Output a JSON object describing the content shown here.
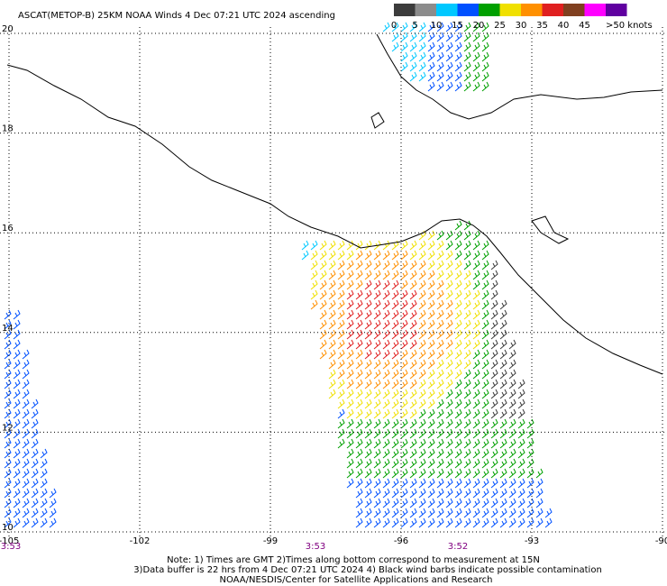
{
  "header": {
    "title": "ASCAT(METOP-B) 25KM NOAA Winds 4 Dec 07:21 UTC 2024 ascending"
  },
  "legend": {
    "items": [
      {
        "label": "0",
        "color": "#3c3c3c"
      },
      {
        "label": "5",
        "color": "#8c8c8c"
      },
      {
        "label": "10",
        "color": "#00c8ff"
      },
      {
        "label": "15",
        "color": "#0050ff"
      },
      {
        "label": "20",
        "color": "#00a000"
      },
      {
        "label": "25",
        "color": "#f0e000"
      },
      {
        "label": "30",
        "color": "#ff9000"
      },
      {
        "label": "35",
        "color": "#e02020"
      },
      {
        "label": "40",
        "color": "#804020"
      },
      {
        "label": "45",
        "color": "#ff00ff"
      },
      {
        "label": ">50 knots",
        "color": "#6000a0"
      }
    ]
  },
  "map": {
    "latitudes": [
      "20",
      "18",
      "16",
      "14",
      "12",
      "10"
    ],
    "longitudes": [
      "-105",
      "-102",
      "-99",
      "-96",
      "-93",
      "-90"
    ],
    "times": [
      "3:53",
      "3:53",
      "3:52"
    ]
  },
  "notes": [
    "Note: 1) Times are GMT 2)Times along bottom correspond to measurement at 15N",
    "3)Data buffer is 22 hrs from 4 Dec 07:21 UTC 2024 4) Black wind barbs indicate possible contamination",
    "NOAA/NESDIS/Center for Satellite Applications and Research"
  ]
}
